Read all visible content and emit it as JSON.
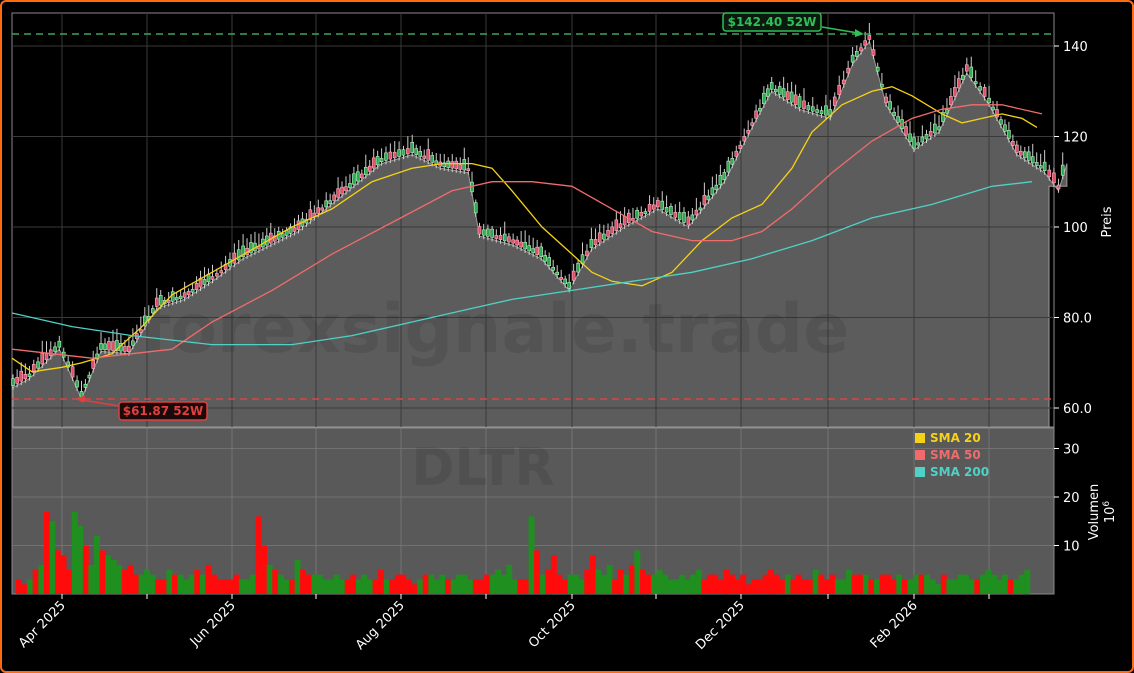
{
  "chart_data": {
    "type": "candlestick",
    "ticker": "DLTR",
    "watermark": "forexsignale.trade",
    "x_ticks": [
      "Apr 2025",
      "Jun 2025",
      "Aug 2025",
      "Oct 2025",
      "Dec 2025",
      "Feb 2026"
    ],
    "price_axis": {
      "label": "Preis",
      "ticks": [
        "60.0",
        "80.0",
        "100",
        "120",
        "140"
      ],
      "tick_values": [
        60,
        80,
        100,
        120,
        140
      ],
      "ylim": [
        55,
        147
      ]
    },
    "volume_axis": {
      "label": "Volumen",
      "scale": "10^6",
      "ticks": [
        "10",
        "20",
        "30"
      ],
      "tick_values": [
        10,
        20,
        30
      ],
      "ylim": [
        0,
        35
      ]
    },
    "annotations": {
      "high_52w": {
        "label": "$142.40 52W",
        "value": 142.4,
        "color": "#2fbf57"
      },
      "low_52w": {
        "label": "$61.87 52W",
        "value": 61.87,
        "color": "#e04040"
      }
    },
    "legend": [
      {
        "label": "SMA 20",
        "color": "#f5d216"
      },
      {
        "label": "SMA 50",
        "color": "#f26b6b"
      },
      {
        "label": "SMA 200",
        "color": "#4fd1c5"
      }
    ],
    "close_series_approx": [
      {
        "date": "2025-03-10",
        "close": 64.5
      },
      {
        "date": "2025-03-20",
        "close": 66.5
      },
      {
        "date": "2025-03-31",
        "close": 73.0
      },
      {
        "date": "2025-04-08",
        "close": 62.0
      },
      {
        "date": "2025-04-15",
        "close": 72.5
      },
      {
        "date": "2025-04-25",
        "close": 72.0
      },
      {
        "date": "2025-05-05",
        "close": 82.0
      },
      {
        "date": "2025-05-15",
        "close": 84.0
      },
      {
        "date": "2025-05-25",
        "close": 88.0
      },
      {
        "date": "2025-06-05",
        "close": 93.0
      },
      {
        "date": "2025-06-15",
        "close": 96.0
      },
      {
        "date": "2025-06-25",
        "close": 99.0
      },
      {
        "date": "2025-07-05",
        "close": 104.0
      },
      {
        "date": "2025-07-15",
        "close": 109.0
      },
      {
        "date": "2025-07-25",
        "close": 114.0
      },
      {
        "date": "2025-08-05",
        "close": 116.0
      },
      {
        "date": "2025-08-15",
        "close": 113.0
      },
      {
        "date": "2025-08-25",
        "close": 112.0
      },
      {
        "date": "2025-08-29",
        "close": 98.0
      },
      {
        "date": "2025-09-10",
        "close": 96.0
      },
      {
        "date": "2025-09-20",
        "close": 93.0
      },
      {
        "date": "2025-09-30",
        "close": 86.0
      },
      {
        "date": "2025-10-08",
        "close": 95.0
      },
      {
        "date": "2025-10-20",
        "close": 100.0
      },
      {
        "date": "2025-11-01",
        "close": 104.0
      },
      {
        "date": "2025-11-12",
        "close": 100.0
      },
      {
        "date": "2025-11-25",
        "close": 110.0
      },
      {
        "date": "2025-12-05",
        "close": 122.0
      },
      {
        "date": "2025-12-12",
        "close": 130.0
      },
      {
        "date": "2025-12-22",
        "close": 126.0
      },
      {
        "date": "2026-01-02",
        "close": 124.0
      },
      {
        "date": "2026-01-10",
        "close": 136.0
      },
      {
        "date": "2026-01-16",
        "close": 141.0
      },
      {
        "date": "2026-01-22",
        "close": 127.0
      },
      {
        "date": "2026-02-01",
        "close": 117.0
      },
      {
        "date": "2026-02-10",
        "close": 121.0
      },
      {
        "date": "2026-02-20",
        "close": 134.0
      },
      {
        "date": "2026-02-28",
        "close": 127.0
      },
      {
        "date": "2026-03-10",
        "close": 116.0
      },
      {
        "date": "2026-03-20",
        "close": 112.0
      },
      {
        "date": "2026-03-25",
        "close": 108.0
      },
      {
        "date": "2026-03-28",
        "close": 114.0
      }
    ],
    "last_close_area_level": 109.0,
    "sma20_approx": [
      [
        0,
        71
      ],
      [
        20,
        68
      ],
      [
        50,
        69
      ],
      [
        70,
        70
      ],
      [
        100,
        72
      ],
      [
        130,
        78
      ],
      [
        160,
        85
      ],
      [
        200,
        90
      ],
      [
        240,
        95
      ],
      [
        280,
        100
      ],
      [
        320,
        104
      ],
      [
        360,
        110
      ],
      [
        400,
        113
      ],
      [
        430,
        114
      ],
      [
        460,
        114
      ],
      [
        480,
        113
      ],
      [
        500,
        108
      ],
      [
        530,
        100
      ],
      [
        560,
        94
      ],
      [
        580,
        90
      ],
      [
        600,
        88
      ],
      [
        630,
        87
      ],
      [
        660,
        90
      ],
      [
        690,
        97
      ],
      [
        720,
        102
      ],
      [
        750,
        105
      ],
      [
        780,
        113
      ],
      [
        800,
        121
      ],
      [
        830,
        127
      ],
      [
        860,
        130
      ],
      [
        880,
        131
      ],
      [
        900,
        129
      ],
      [
        930,
        125
      ],
      [
        950,
        123
      ],
      [
        970,
        124
      ],
      [
        990,
        125
      ],
      [
        1010,
        124
      ],
      [
        1025,
        122
      ]
    ],
    "sma50_approx": [
      [
        0,
        73
      ],
      [
        40,
        72
      ],
      [
        80,
        71
      ],
      [
        120,
        72
      ],
      [
        160,
        73
      ],
      [
        200,
        79
      ],
      [
        260,
        86
      ],
      [
        320,
        94
      ],
      [
        380,
        101
      ],
      [
        440,
        108
      ],
      [
        480,
        110
      ],
      [
        520,
        110
      ],
      [
        560,
        109
      ],
      [
        600,
        104
      ],
      [
        640,
        99
      ],
      [
        680,
        97
      ],
      [
        720,
        97
      ],
      [
        750,
        99
      ],
      [
        780,
        104
      ],
      [
        820,
        112
      ],
      [
        860,
        119
      ],
      [
        900,
        124
      ],
      [
        930,
        126
      ],
      [
        960,
        127
      ],
      [
        990,
        127
      ],
      [
        1030,
        125
      ]
    ],
    "sma200_approx": [
      [
        0,
        81
      ],
      [
        60,
        78
      ],
      [
        120,
        76
      ],
      [
        200,
        74
      ],
      [
        280,
        74
      ],
      [
        340,
        76
      ],
      [
        400,
        79
      ],
      [
        460,
        82
      ],
      [
        500,
        84
      ],
      [
        560,
        86
      ],
      [
        620,
        88
      ],
      [
        680,
        90
      ],
      [
        740,
        93
      ],
      [
        800,
        97
      ],
      [
        860,
        102
      ],
      [
        920,
        105
      ],
      [
        980,
        109
      ],
      [
        1020,
        110
      ]
    ],
    "volume_approx_millions": [
      3,
      2,
      3,
      5,
      6,
      17,
      15,
      9,
      8,
      5,
      17,
      14,
      10,
      6,
      12,
      9,
      8,
      7,
      6,
      5,
      6,
      4,
      4,
      5,
      4,
      3,
      3,
      5,
      4,
      4,
      3,
      4,
      5,
      4,
      6,
      4,
      3,
      3,
      3,
      4,
      3,
      3,
      4,
      16,
      10,
      6,
      5,
      4,
      3,
      3,
      7,
      5,
      4,
      4,
      4,
      3,
      3,
      4,
      3,
      3,
      4,
      3,
      4,
      3,
      3,
      5,
      3,
      3,
      4,
      4,
      3,
      2,
      3,
      4,
      4,
      3,
      4,
      3,
      3,
      4,
      4,
      3,
      3,
      3,
      4,
      4,
      5,
      4,
      6,
      3,
      3,
      3,
      16,
      9,
      4,
      5,
      8,
      4,
      3,
      4,
      4,
      3,
      5,
      8,
      5,
      4,
      6,
      3,
      5,
      4,
      6,
      9,
      5,
      4,
      4,
      5,
      4,
      3,
      3,
      4,
      3,
      4,
      5,
      3,
      4,
      4,
      3,
      5,
      4,
      3,
      4,
      2,
      3,
      3,
      4,
      5,
      4,
      3,
      4,
      3,
      4,
      3,
      3,
      5,
      4,
      3,
      4,
      3,
      3,
      5,
      4,
      4,
      4,
      3,
      3,
      4,
      4,
      3,
      4,
      3,
      3,
      4,
      4,
      4,
      3,
      2,
      4,
      3,
      3,
      4,
      4,
      3,
      3,
      4,
      5,
      4,
      3,
      4,
      3,
      3,
      4,
      5
    ]
  }
}
